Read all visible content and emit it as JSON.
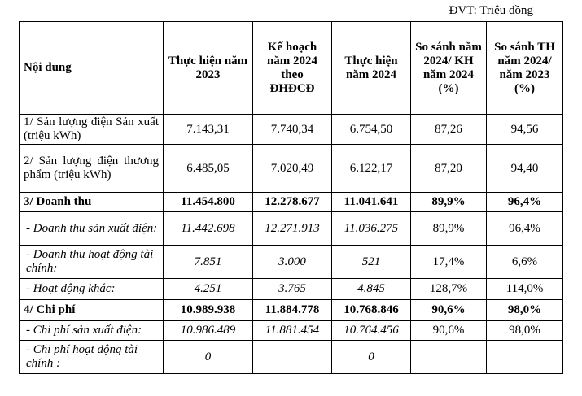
{
  "unit_note": "ĐVT: Triệu đồng",
  "headers": {
    "content": "Nội dung",
    "actual_2023": "Thực hiện năm 2023",
    "plan_2024": "Kế hoạch năm 2024 theo ĐHĐCĐ",
    "actual_2024": "Thực hiện năm 2024",
    "compare_plan": "So sánh năm 2024/ KH năm 2024 (%)",
    "compare_actual": "So sánh TH năm 2024/ năm 2023 (%)"
  },
  "rows": [
    {
      "label": "1/ Sản lượng điện Sản xuất (triệu kWh)",
      "v1": "7.143,31",
      "v2": "7.740,34",
      "v3": "6.754,50",
      "p1": "87,26",
      "p2": "94,56"
    },
    {
      "label": "2/ Sản lượng điện thương phẩm (triệu kWh)",
      "v1": "6.485,05",
      "v2": "7.020,49",
      "v3": "6.122,17",
      "p1": "87,20",
      "p2": "94,40"
    },
    {
      "label": "3/ Doanh thu",
      "v1": "11.454.800",
      "v2": "12.278.677",
      "v3": "11.041.641",
      "p1": "89,9%",
      "p2": "96,4%"
    },
    {
      "label": "- Doanh thu sản xuất điện:",
      "v1": "11.442.698",
      "v2": "12.271.913",
      "v3": "11.036.275",
      "p1": "89,9%",
      "p2": "96,4%"
    },
    {
      "label": "- Doanh thu hoạt động tài chính:",
      "v1": "7.851",
      "v2": "3.000",
      "v3": "521",
      "p1": "17,4%",
      "p2": "6,6%"
    },
    {
      "label": "- Hoạt động khác:",
      "v1": "4.251",
      "v2": "3.765",
      "v3": "4.845",
      "p1": "128,7%",
      "p2": "114,0%"
    },
    {
      "label": "4/ Chi phí",
      "v1": "10.989.938",
      "v2": "11.884.778",
      "v3": "10.768.846",
      "p1": "90,6%",
      "p2": "98,0%"
    },
    {
      "label": "- Chi phí sản xuất điện:",
      "v1": "10.986.489",
      "v2": "11.881.454",
      "v3": "10.764.456",
      "p1": "90,6%",
      "p2": "98,0%"
    },
    {
      "label": "- Chi phí hoạt động tài chính :",
      "v1": "0",
      "v2": "",
      "v3": "0",
      "p1": "",
      "p2": ""
    }
  ]
}
